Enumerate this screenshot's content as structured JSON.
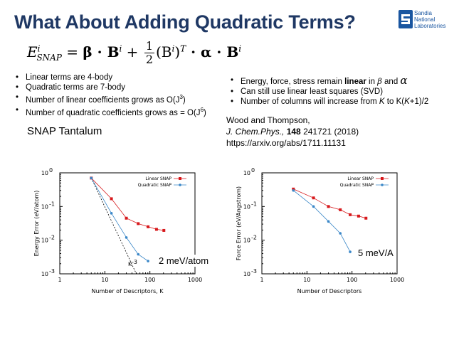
{
  "slide": {
    "title": "What About Adding Quadratic Terms?",
    "logo": {
      "line1": "Sandia",
      "line2": "National",
      "line3": "Laboratories"
    },
    "equation": {
      "lhs": "E",
      "lhs_sup": "i",
      "lhs_sub": "SNAP",
      "eq": " = ",
      "term1": "β · B",
      "term1_sup": "i",
      "plus": " + ",
      "frac_num": "1",
      "frac_den": "2",
      "term2a": "(B",
      "term2a_sup": "i",
      "term2b": ")",
      "term2b_sup": "T",
      "term2c": " · α · B",
      "term2c_sup": "i"
    },
    "left_bullets": [
      {
        "text": "Linear terms are 4-body"
      },
      {
        "text": "Quadratic terms are 7-body"
      },
      {
        "pre": "Number of linear coefficients grows as O(J",
        "sup": "3",
        "post": ")"
      },
      {
        "pre": "Number of quadratic coefficients grows as = O(J",
        "sup": "6",
        "post": ")"
      }
    ],
    "right_bullets": [
      {
        "pre": "Energy, force, stress remain ",
        "bold": "linear",
        "mid": " in ",
        "sym1": "β",
        "and": " and ",
        "sym2": "α"
      },
      {
        "text": "Can still use linear least squares (SVD)"
      },
      {
        "pre": "Number of columns will increase from ",
        "k1": "K",
        "mid": " to K(",
        "k2": "K",
        "post": "+1)/2"
      }
    ],
    "snap_title": "SNAP Tantalum",
    "citation": {
      "line1": "Wood and Thompson,",
      "journal": "J. Chem.Phys.,",
      "volume": "148",
      "rest": " 241721 (2018)",
      "url": "https://arxiv.org/abs/1711.11131"
    },
    "callout_left": "2 meV/atom",
    "callout_right": "5 meV/A"
  },
  "chart_data": [
    {
      "type": "line",
      "xscale": "log",
      "yscale": "log",
      "xlim": [
        1,
        1000
      ],
      "ylim": [
        0.001,
        1
      ],
      "x_ticks": [
        "1",
        "10",
        "100",
        "1000"
      ],
      "y_ticks": [
        {
          "base": "10",
          "exp": "-3"
        },
        {
          "base": "10",
          "exp": "-2"
        },
        {
          "base": "10",
          "exp": "-1"
        },
        {
          "base": "10",
          "exp": "0"
        }
      ],
      "xlabel": "Number of Descriptors, K",
      "ylabel": "Energy Error (eV/atom)",
      "legend_position": "top-right",
      "annotation": "K",
      "annotation_sup": "-3",
      "series": [
        {
          "name": "Linear SNAP",
          "color": "#d7191c",
          "marker": "square",
          "x": [
            5,
            14,
            30,
            55,
            91,
            140,
            204
          ],
          "y": [
            0.7,
            0.17,
            0.045,
            0.031,
            0.025,
            0.021,
            0.0195
          ]
        },
        {
          "name": "Quadratic SNAP",
          "color": "#3a87c8",
          "marker": "circle",
          "x": [
            5,
            14,
            30,
            55,
            91
          ],
          "y": [
            0.7,
            0.063,
            0.012,
            0.0038,
            0.0024
          ]
        }
      ],
      "reference_line": {
        "x": [
          5,
          50
        ],
        "y": [
          0.7,
          0.0007
        ]
      }
    },
    {
      "type": "line",
      "xscale": "log",
      "yscale": "log",
      "xlim": [
        1,
        1000
      ],
      "ylim": [
        0.001,
        1
      ],
      "x_ticks": [
        "1",
        "10",
        "100",
        "1000"
      ],
      "y_ticks": [
        {
          "base": "10",
          "exp": "-3"
        },
        {
          "base": "10",
          "exp": "-2"
        },
        {
          "base": "10",
          "exp": "-1"
        },
        {
          "base": "10",
          "exp": "0"
        }
      ],
      "xlabel": "Number of Descriptors",
      "ylabel": "Force Error (eV/Angstrom)",
      "legend_position": "top-right",
      "series": [
        {
          "name": "Linear SNAP",
          "color": "#d7191c",
          "marker": "square",
          "x": [
            5,
            14,
            30,
            55,
            91,
            140,
            204
          ],
          "y": [
            0.33,
            0.18,
            0.1,
            0.08,
            0.057,
            0.052,
            0.045
          ]
        },
        {
          "name": "Quadratic SNAP",
          "color": "#3a87c8",
          "marker": "circle",
          "x": [
            5,
            14,
            30,
            55,
            91
          ],
          "y": [
            0.3,
            0.1,
            0.036,
            0.016,
            0.0045
          ]
        }
      ]
    }
  ]
}
